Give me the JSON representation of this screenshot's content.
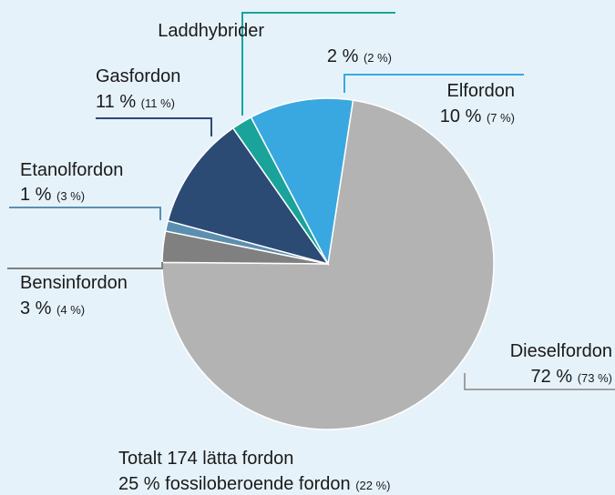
{
  "chart_data": {
    "type": "pie",
    "categories": [
      "Dieselfordon",
      "Bensinfordon",
      "Etanolfordon",
      "Gasfordon",
      "Laddhybrider",
      "Elfordon"
    ],
    "values": [
      72,
      3,
      1,
      11,
      2,
      10
    ],
    "value_labels": [
      "72 %",
      "3 %",
      "1 %",
      "11 %",
      "2 %",
      "10 %"
    ],
    "previous_value_labels": [
      "(73 %)",
      "(4 %)",
      "(3 %)",
      "(11 %)",
      "(2 %)",
      "(7 %)"
    ],
    "colors": [
      "#b3b3b3",
      "#808080",
      "#5b8fb0",
      "#2b4a74",
      "#1aa39a",
      "#3aa8e0"
    ],
    "footnote": [
      "Totalt 174 lätta fordon",
      "25 % fossiloberoende fordon"
    ],
    "footnote_note": "(22 %)"
  }
}
